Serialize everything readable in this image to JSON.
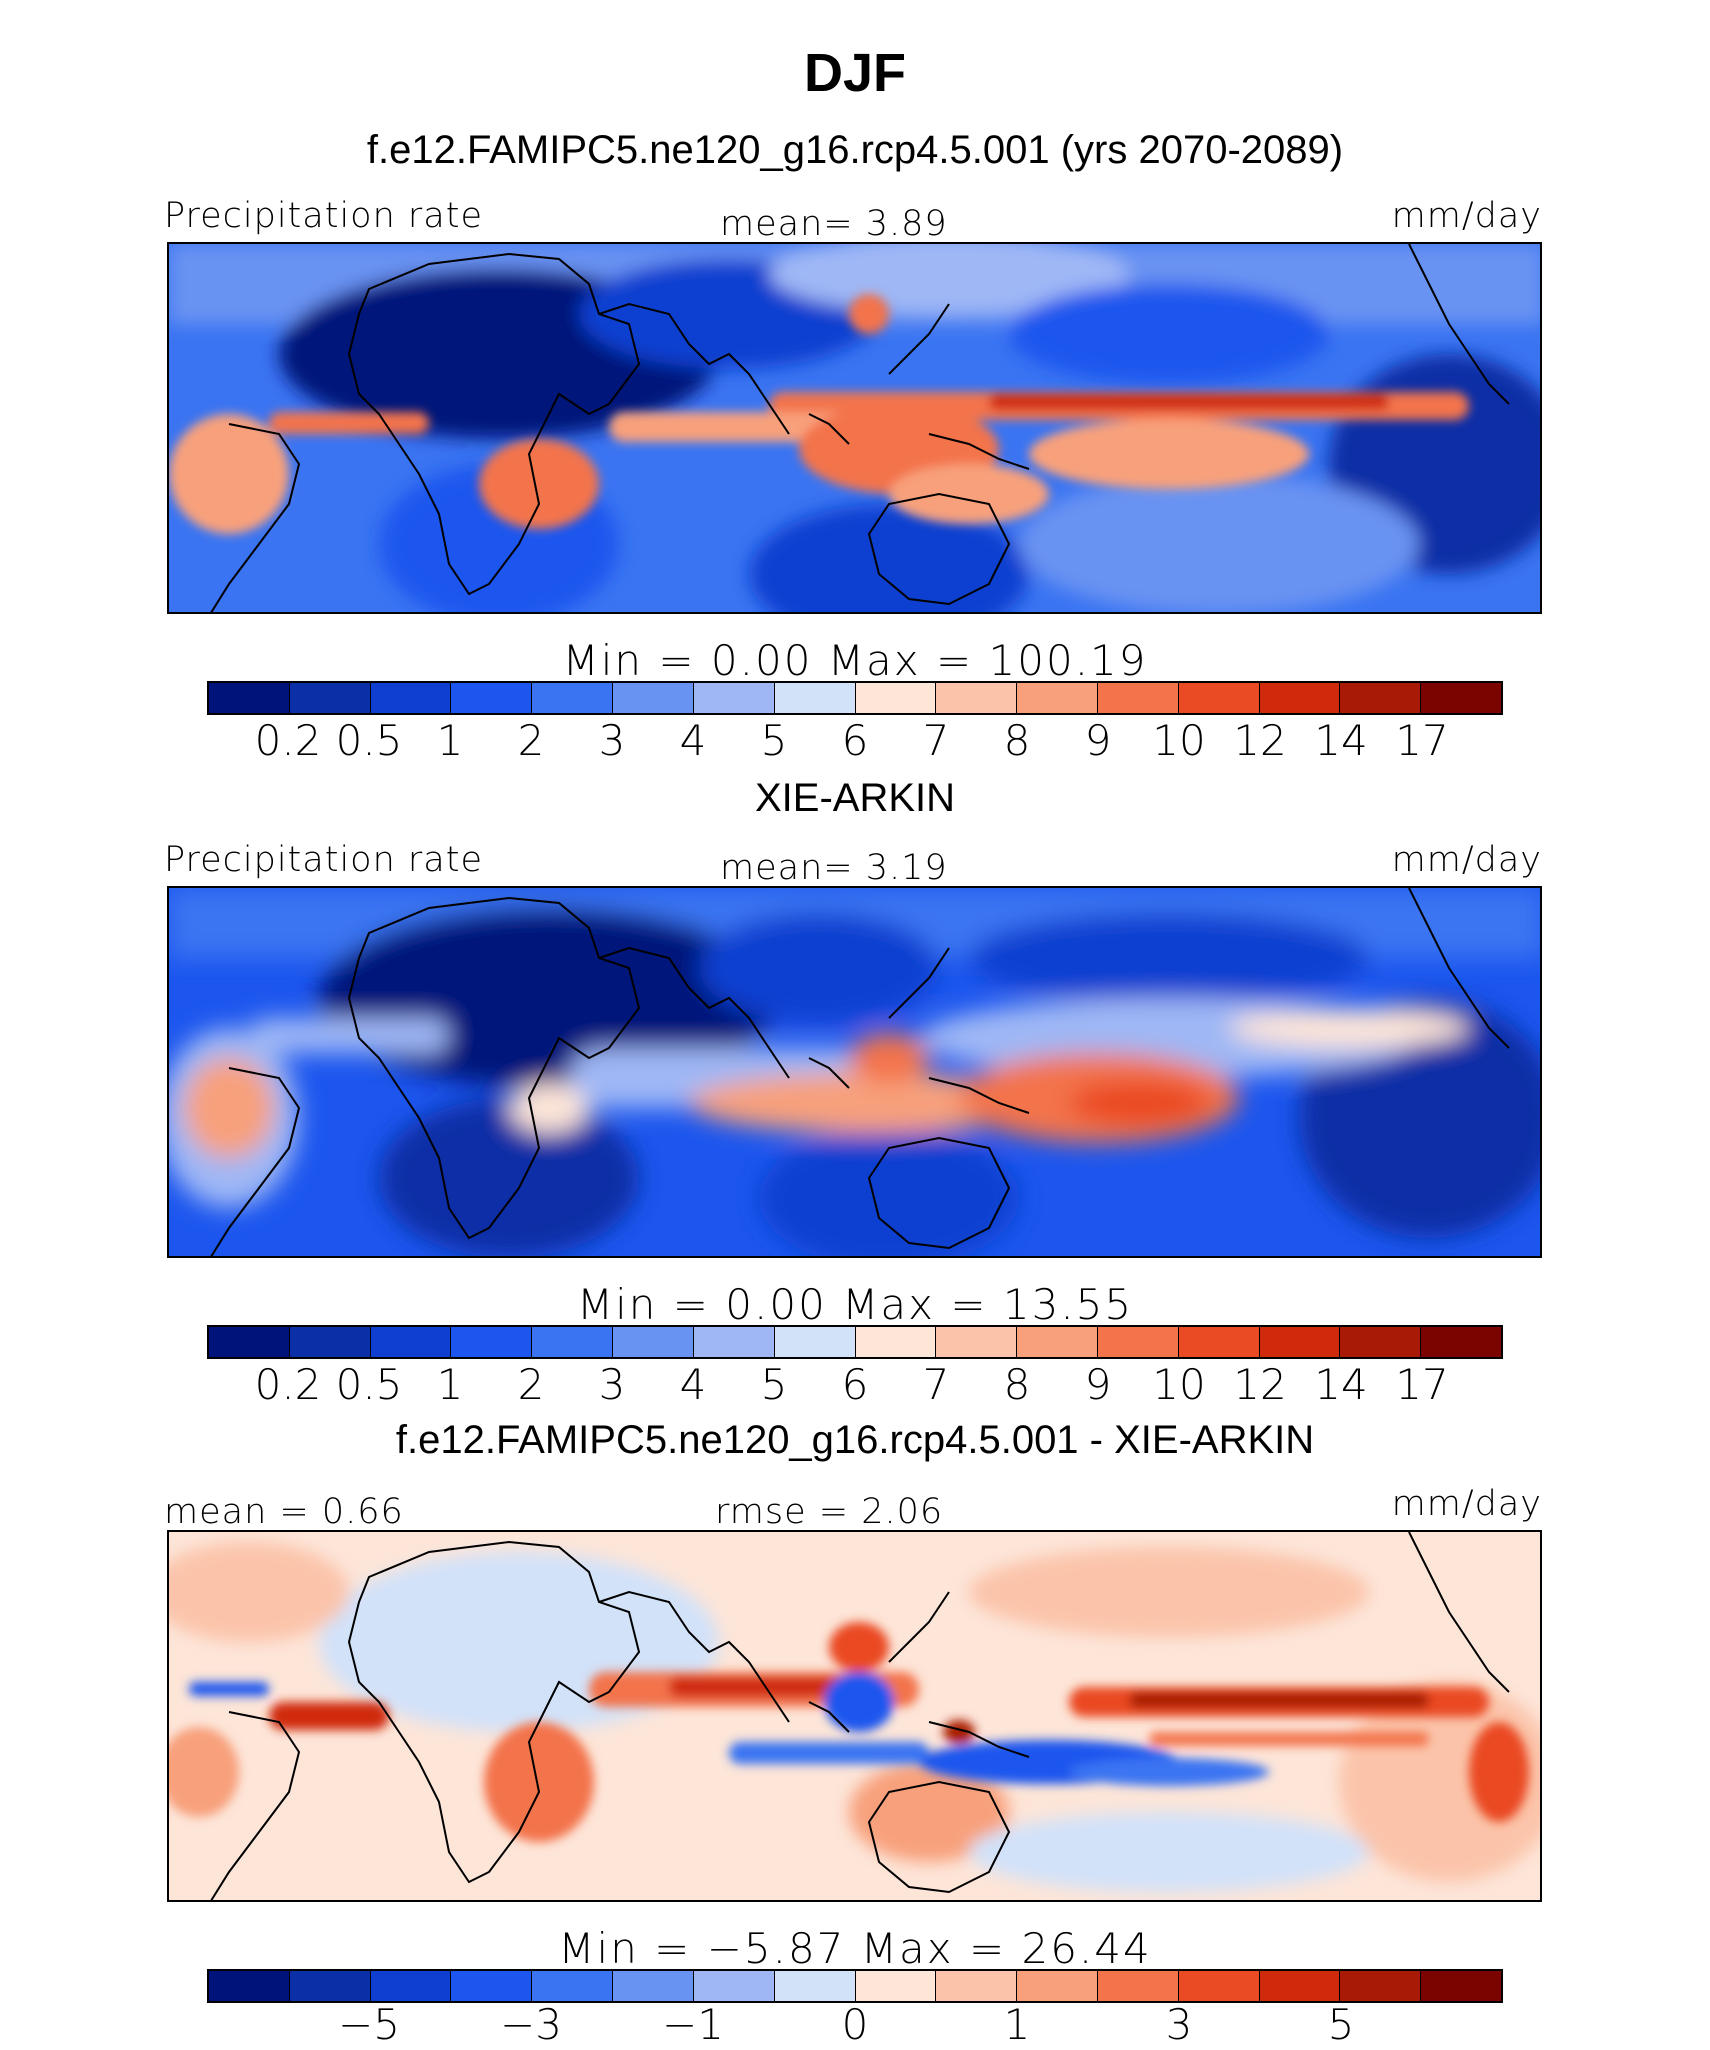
{
  "title": "DJF",
  "panels": [
    {
      "title": "f.e12.FAMIPC5.ne120_g16.rcp4.5.001 (yrs 2070-2089)",
      "left_label": "Precipitation  rate",
      "center_label": "mean=    3.89",
      "right_label": "mm/day",
      "minmax": "Min  =     0.00  Max  =  100.19"
    },
    {
      "title": "XIE-ARKIN",
      "left_label": "Precipitation  rate",
      "center_label": "mean=    3.19",
      "right_label": "mm/day",
      "minmax": "Min  =     0.00  Max  =    13.55"
    },
    {
      "title": "f.e12.FAMIPC5.ne120_g16.rcp4.5.001 - XIE-ARKIN",
      "left_label": "mean  =    0.66",
      "center_label": "rmse  =    2.06",
      "right_label": "mm/day",
      "minmax": "Min  =   −5.87  Max  =    26.44"
    }
  ],
  "chart_data": [
    {
      "type": "heatmap",
      "title": "f.e12.FAMIPC5.ne120_g16.rcp4.5.001 (yrs 2070-2089)",
      "variable": "Precipitation  rate",
      "units": "mm/day",
      "mean": 3.89,
      "min": 0.0,
      "max": 100.19,
      "colorbar_levels": [
        "0.2",
        "0.5",
        "1",
        "2",
        "3",
        "4",
        "5",
        "6",
        "7",
        "8",
        "9",
        "10",
        "12",
        "14",
        "17"
      ],
      "colorbar_colors": [
        "#00137a",
        "#0a2fa6",
        "#0f3fd0",
        "#1c56ee",
        "#3a74f2",
        "#6993f2",
        "#9fb7f5",
        "#d2e2f9",
        "#fde5d8",
        "#fbc4aa",
        "#f8a07c",
        "#f3734b",
        "#ea4a24",
        "#d02a0c",
        "#a81a05",
        "#7c0400"
      ]
    },
    {
      "type": "heatmap",
      "title": "XIE-ARKIN",
      "variable": "Precipitation  rate",
      "units": "mm/day",
      "mean": 3.19,
      "min": 0.0,
      "max": 13.55,
      "colorbar_levels": [
        "0.2",
        "0.5",
        "1",
        "2",
        "3",
        "4",
        "5",
        "6",
        "7",
        "8",
        "9",
        "10",
        "12",
        "14",
        "17"
      ],
      "colorbar_colors": [
        "#00137a",
        "#0a2fa6",
        "#0f3fd0",
        "#1c56ee",
        "#3a74f2",
        "#6993f2",
        "#9fb7f5",
        "#d2e2f9",
        "#fde5d8",
        "#fbc4aa",
        "#f8a07c",
        "#f3734b",
        "#ea4a24",
        "#d02a0c",
        "#a81a05",
        "#7c0400"
      ]
    },
    {
      "type": "heatmap",
      "title": "f.e12.FAMIPC5.ne120_g16.rcp4.5.001 - XIE-ARKIN",
      "units": "mm/day",
      "mean": 0.66,
      "rmse": 2.06,
      "min": -5.87,
      "max": 26.44,
      "colorbar_tick_labels": [
        "−5",
        "−3",
        "−1",
        "0",
        "1",
        "3",
        "5"
      ],
      "colorbar_colors": [
        "#00137a",
        "#0a2fa6",
        "#0f3fd0",
        "#1c56ee",
        "#3a74f2",
        "#6993f2",
        "#9fb7f5",
        "#d2e2f9",
        "#fde5d8",
        "#fbc4aa",
        "#f8a07c",
        "#f3734b",
        "#ea4a24",
        "#d02a0c",
        "#a81a05",
        "#7c0400"
      ]
    }
  ]
}
